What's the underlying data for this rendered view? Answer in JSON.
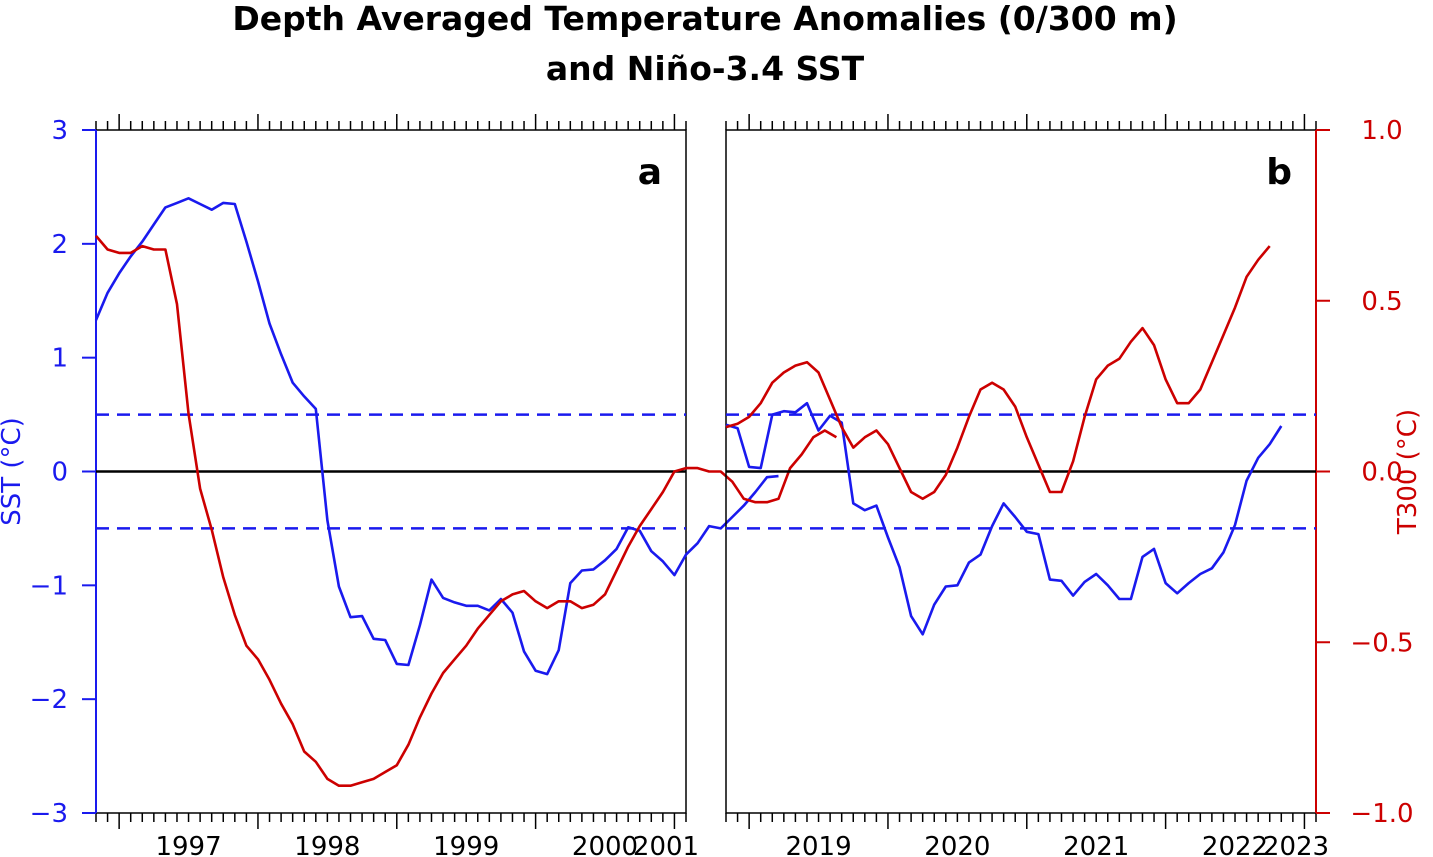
{
  "title_lines": [
    "Depth Averaged Temperature Anomalies (0/300 m)",
    "and Niño-3.4 SST"
  ],
  "colors": {
    "sst": "#1a1aee",
    "t300": "#cc0000",
    "threshold": "#1a1aee",
    "zero": "#000000",
    "axis": "#000000"
  },
  "chart_data": [
    {
      "panel": "a",
      "type": "line",
      "x_ticks": [
        "1997",
        "1998",
        "1999",
        "2000",
        "2001"
      ],
      "xlim": [
        "1996-11",
        "2001-02"
      ],
      "left_axis": {
        "label": "SST (°C)",
        "ylim": [
          -3,
          3
        ],
        "ticks": [
          "3",
          "2",
          "1",
          "0",
          "−1",
          "−2",
          "−3"
        ]
      },
      "right_axis": {
        "label": "",
        "ylim": [
          -1.0,
          1.0
        ],
        "ticks": []
      },
      "thresholds": [
        0.5,
        -0.5
      ],
      "series": [
        {
          "key": "sst",
          "axis": "left",
          "start": "1996-11",
          "values": [
            1.33,
            1.57,
            1.74,
            1.89,
            2.02,
            2.17,
            2.32,
            2.36,
            2.4,
            2.35,
            2.3,
            2.36,
            2.35,
            2.02,
            1.67,
            1.3,
            1.03,
            0.78,
            0.66,
            0.55,
            -0.43,
            -1.01,
            -1.28,
            -1.27,
            -1.47,
            -1.48,
            -1.69,
            -1.7,
            -1.35,
            -0.95,
            -1.11,
            -1.15,
            -1.18,
            -1.18,
            -1.22,
            -1.12,
            -1.24,
            -1.58,
            -1.75,
            -1.78,
            -1.57,
            -0.98,
            -0.87,
            -0.86,
            -0.78,
            -0.68,
            -0.49,
            -0.52,
            -0.7,
            -0.79,
            -0.91,
            -0.73,
            -0.63,
            -0.48,
            -0.5,
            -0.4,
            -0.3,
            -0.18,
            -0.05,
            -0.04
          ]
        },
        {
          "key": "t300",
          "axis": "right",
          "start": "1996-11",
          "values": [
            0.69,
            0.65,
            0.64,
            0.64,
            0.66,
            0.65,
            0.65,
            0.49,
            0.17,
            -0.05,
            -0.17,
            -0.31,
            -0.42,
            -0.51,
            -0.55,
            -0.61,
            -0.68,
            -0.74,
            -0.82,
            -0.85,
            -0.9,
            -0.92,
            -0.92,
            -0.91,
            -0.9,
            -0.88,
            -0.86,
            -0.8,
            -0.72,
            -0.65,
            -0.59,
            -0.55,
            -0.51,
            -0.46,
            -0.42,
            -0.38,
            -0.36,
            -0.35,
            -0.38,
            -0.4,
            -0.38,
            -0.38,
            -0.4,
            -0.39,
            -0.36,
            -0.29,
            -0.22,
            -0.16,
            -0.11,
            -0.06,
            0.0,
            0.01,
            0.01,
            0.0,
            0.0,
            -0.03,
            -0.08,
            -0.09,
            -0.09,
            -0.08,
            0.01,
            0.05,
            0.1,
            0.12,
            0.1
          ]
        }
      ]
    },
    {
      "panel": "b",
      "type": "line",
      "x_ticks": [
        "2019",
        "2020",
        "2021",
        "2022",
        "2023"
      ],
      "xlim": [
        "2018-11",
        "2023-02"
      ],
      "left_axis": {
        "label": "",
        "ylim": [
          -3,
          3
        ],
        "ticks": []
      },
      "right_axis": {
        "label": "T300 (°C)",
        "ylim": [
          -1.0,
          1.0
        ],
        "ticks": [
          "1.0",
          "0.5",
          "0.0",
          "−0.5",
          "−1.0"
        ]
      },
      "thresholds": [
        0.5,
        -0.5
      ],
      "series": [
        {
          "key": "sst",
          "axis": "left",
          "start": "2018-11",
          "values": [
            0.41,
            0.38,
            0.04,
            0.03,
            0.5,
            0.53,
            0.52,
            0.6,
            0.36,
            0.49,
            0.43,
            -0.28,
            -0.34,
            -0.3,
            -0.58,
            -0.84,
            -1.27,
            -1.43,
            -1.17,
            -1.01,
            -1.0,
            -0.8,
            -0.73,
            -0.48,
            -0.28,
            -0.4,
            -0.53,
            -0.55,
            -0.95,
            -0.96,
            -1.09,
            -0.97,
            -0.9,
            -1.0,
            -1.12,
            -1.12,
            -0.75,
            -0.68,
            -0.98,
            -1.07,
            -0.98,
            -0.9,
            -0.85,
            -0.71,
            -0.47,
            -0.08,
            0.12,
            0.24,
            0.4
          ]
        },
        {
          "key": "t300",
          "axis": "right",
          "start": "2018-11",
          "values": [
            0.13,
            0.14,
            0.16,
            0.2,
            0.26,
            0.29,
            0.31,
            0.32,
            0.29,
            0.21,
            0.13,
            0.07,
            0.1,
            0.12,
            0.08,
            0.01,
            -0.06,
            -0.08,
            -0.06,
            -0.01,
            0.07,
            0.16,
            0.24,
            0.26,
            0.24,
            0.19,
            0.1,
            0.02,
            -0.06,
            -0.06,
            0.03,
            0.16,
            0.27,
            0.31,
            0.33,
            0.38,
            0.42,
            0.37,
            0.27,
            0.2,
            0.2,
            0.24,
            0.32,
            0.4,
            0.48,
            0.57,
            0.62,
            0.66
          ]
        }
      ]
    }
  ]
}
